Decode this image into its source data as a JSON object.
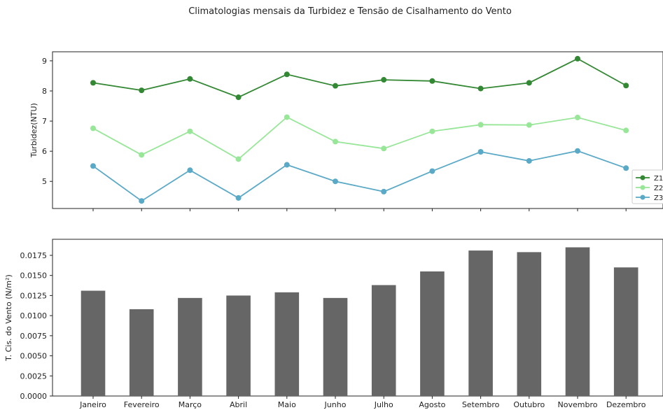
{
  "chart_data": [
    {
      "type": "line",
      "title": "Climatologias mensais da Turbidez e Tensão de Cisalhamento do Vento",
      "ylabel": "Turbidez(NTU)",
      "xlabel": "",
      "categories": [
        "Janeiro",
        "Fevereiro",
        "Março",
        "Abril",
        "Maio",
        "Junho",
        "Julho",
        "Agosto",
        "Setembro",
        "Outubro",
        "Novembro",
        "Dezembro"
      ],
      "ylim": [
        4.1,
        9.3
      ],
      "yticks": [
        5,
        6,
        7,
        8,
        9
      ],
      "grid": false,
      "legend_position": "right",
      "series": [
        {
          "name": "Z1",
          "color": "#338833",
          "values": [
            8.27,
            8.02,
            8.4,
            7.79,
            8.55,
            8.17,
            8.37,
            8.33,
            8.08,
            8.27,
            9.07,
            8.18
          ]
        },
        {
          "name": "Z2",
          "color": "#98e698",
          "values": [
            6.76,
            5.88,
            6.66,
            5.74,
            7.13,
            6.32,
            6.09,
            6.66,
            6.88,
            6.87,
            7.12,
            6.69
          ]
        },
        {
          "name": "Z3",
          "color": "#5aa9c7",
          "values": [
            5.51,
            4.35,
            5.37,
            4.45,
            5.55,
            5.0,
            4.66,
            5.34,
            5.98,
            5.68,
            6.01,
            5.44
          ]
        }
      ]
    },
    {
      "type": "bar",
      "ylabel": "T. Cis. do Vento (N/m²)",
      "xlabel": "",
      "categories": [
        "Janeiro",
        "Fevereiro",
        "Março",
        "Abril",
        "Maio",
        "Junho",
        "Julho",
        "Agosto",
        "Setembro",
        "Outubro",
        "Novembro",
        "Dezembro"
      ],
      "values": [
        0.0131,
        0.0108,
        0.0122,
        0.0125,
        0.0129,
        0.0122,
        0.0138,
        0.0155,
        0.0181,
        0.0179,
        0.0185,
        0.016
      ],
      "ylim": [
        0,
        0.0195
      ],
      "yticks": [
        "0.0000",
        "0.0025",
        "0.0050",
        "0.0075",
        "0.0100",
        "0.0125",
        "0.0150",
        "0.0175"
      ],
      "bar_color": "#666666",
      "grid": false
    }
  ]
}
